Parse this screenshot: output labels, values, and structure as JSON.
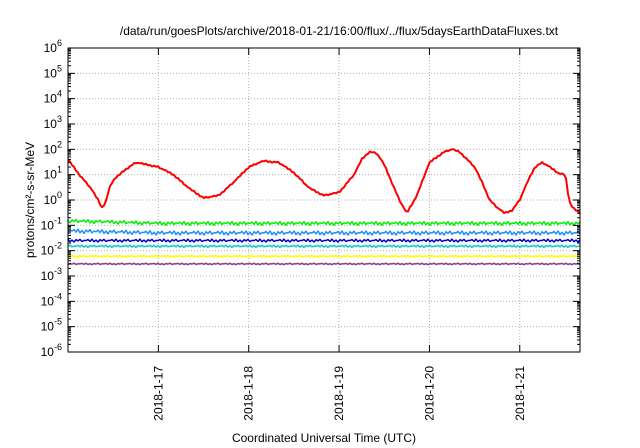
{
  "chart_data": {
    "type": "line",
    "title": "/data/run/goesPlots/archive/2018-01-21/16:00/flux/../flux/5daysEarthDataFluxes.txt",
    "xlabel": "Coordinated Universal Time (UTC)",
    "ylabel": "protons/cm²-s-sr-MeV",
    "y_scale": "log",
    "ylim": [
      1e-06,
      1000000.0
    ],
    "xlim": [
      "2018-01-16 00:00",
      "2018-01-21 16:00"
    ],
    "grid": true,
    "x_tick_labels": [
      "2018-1-17",
      "2018-1-18",
      "2018-1-19",
      "2018-1-20",
      "2018-1-21"
    ],
    "x_ticks": [
      "2018-01-17",
      "2018-01-18",
      "2018-01-19",
      "2018-01-20",
      "2018-01-21"
    ],
    "y_ticks": [
      1e-06,
      1e-05,
      0.0001,
      0.001,
      0.01,
      0.1,
      1.0,
      10.0,
      100.0,
      1000.0,
      10000.0,
      100000.0,
      1000000.0
    ],
    "series": [
      {
        "color": "#ff0000",
        "x": [
          "2018-01-16 00:00",
          "2018-01-16 03:00",
          "2018-01-16 06:00",
          "2018-01-16 08:00",
          "2018-01-16 09:00",
          "2018-01-16 10:00",
          "2018-01-16 11:00",
          "2018-01-16 12:00",
          "2018-01-16 15:00",
          "2018-01-16 18:00",
          "2018-01-16 21:00",
          "2018-01-17 00:00",
          "2018-01-17 04:00",
          "2018-01-17 08:00",
          "2018-01-17 12:00",
          "2018-01-17 16:00",
          "2018-01-17 20:00",
          "2018-01-18 00:00",
          "2018-01-18 04:00",
          "2018-01-18 08:00",
          "2018-01-18 12:00",
          "2018-01-18 16:00",
          "2018-01-18 20:00",
          "2018-01-19 00:00",
          "2018-01-19 04:00",
          "2018-01-19 06:00",
          "2018-01-19 08:00",
          "2018-01-19 10:00",
          "2018-01-19 12:00",
          "2018-01-19 14:00",
          "2018-01-19 16:00",
          "2018-01-19 18:00",
          "2018-01-19 20:00",
          "2018-01-19 21:00",
          "2018-01-19 22:00",
          "2018-01-20 00:00",
          "2018-01-20 02:00",
          "2018-01-20 04:00",
          "2018-01-20 06:00",
          "2018-01-20 08:00",
          "2018-01-20 10:00",
          "2018-01-20 12:00",
          "2018-01-20 14:00",
          "2018-01-20 16:00",
          "2018-01-20 18:00",
          "2018-01-20 20:00",
          "2018-01-20 22:00",
          "2018-01-21 00:00",
          "2018-01-21 02:00",
          "2018-01-21 04:00",
          "2018-01-21 06:00",
          "2018-01-21 08:00",
          "2018-01-21 10:00",
          "2018-01-21 12:00",
          "2018-01-21 12:30",
          "2018-01-21 13:00",
          "2018-01-21 14:00",
          "2018-01-21 16:00"
        ],
        "values": [
          40,
          10,
          3,
          1,
          0.5,
          0.8,
          3,
          6,
          15,
          30,
          25,
          20,
          10,
          3,
          1.2,
          1.5,
          5,
          20,
          35,
          30,
          12,
          3,
          1.5,
          2,
          10,
          40,
          80,
          70,
          25,
          5,
          1,
          0.3,
          1,
          2,
          5,
          30,
          50,
          80,
          100,
          80,
          40,
          20,
          5,
          1,
          0.5,
          0.3,
          0.4,
          1,
          5,
          20,
          30,
          20,
          12,
          10,
          5,
          1,
          0.5,
          0.3
        ]
      },
      {
        "color": "#00ee00",
        "x": [
          "2018-01-16 00:00",
          "2018-01-17 00:00",
          "2018-01-18 00:00",
          "2018-01-19 00:00",
          "2018-01-20 00:00",
          "2018-01-21 00:00",
          "2018-01-21 16:00"
        ],
        "values": [
          0.15,
          0.12,
          0.12,
          0.12,
          0.12,
          0.12,
          0.12
        ]
      },
      {
        "color": "#1e90ff",
        "x": [
          "2018-01-16 00:00",
          "2018-01-17 00:00",
          "2018-01-18 00:00",
          "2018-01-19 00:00",
          "2018-01-20 00:00",
          "2018-01-21 00:00",
          "2018-01-21 16:00"
        ],
        "values": [
          0.06,
          0.05,
          0.05,
          0.05,
          0.05,
          0.05,
          0.05
        ]
      },
      {
        "color": "#0000cd",
        "x": [
          "2018-01-16 00:00",
          "2018-01-17 00:00",
          "2018-01-18 00:00",
          "2018-01-19 00:00",
          "2018-01-20 00:00",
          "2018-01-21 00:00",
          "2018-01-21 16:00"
        ],
        "values": [
          0.025,
          0.025,
          0.025,
          0.025,
          0.025,
          0.025,
          0.025
        ]
      },
      {
        "color": "#00ced1",
        "x": [
          "2018-01-16 00:00",
          "2018-01-17 00:00",
          "2018-01-18 00:00",
          "2018-01-19 00:00",
          "2018-01-20 00:00",
          "2018-01-21 00:00",
          "2018-01-21 16:00"
        ],
        "values": [
          0.015,
          0.015,
          0.015,
          0.015,
          0.015,
          0.015,
          0.015
        ]
      },
      {
        "color": "#ffff00",
        "x": [
          "2018-01-16 00:00",
          "2018-01-17 00:00",
          "2018-01-18 00:00",
          "2018-01-19 00:00",
          "2018-01-20 00:00",
          "2018-01-21 00:00",
          "2018-01-21 16:00"
        ],
        "values": [
          0.006,
          0.006,
          0.006,
          0.006,
          0.006,
          0.006,
          0.006
        ]
      },
      {
        "color": "#8b3a8b",
        "x": [
          "2018-01-16 00:00",
          "2018-01-17 00:00",
          "2018-01-18 00:00",
          "2018-01-19 00:00",
          "2018-01-20 00:00",
          "2018-01-21 00:00",
          "2018-01-21 16:00"
        ],
        "values": [
          0.003,
          0.003,
          0.003,
          0.003,
          0.003,
          0.003,
          0.003
        ]
      }
    ]
  }
}
